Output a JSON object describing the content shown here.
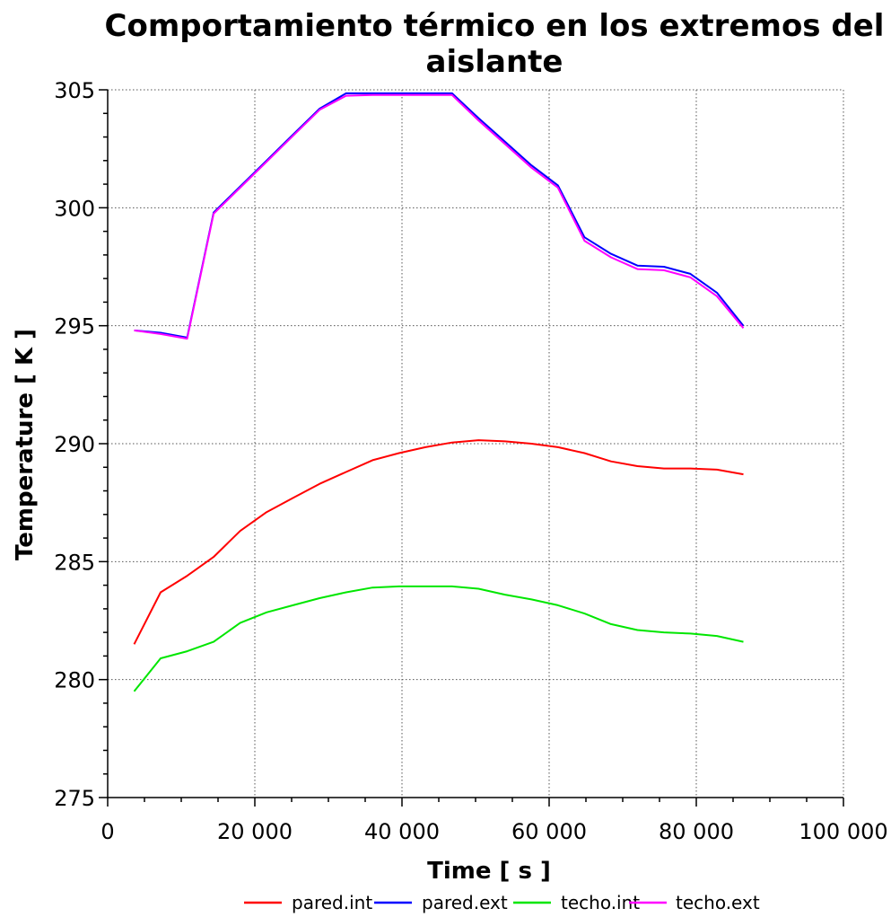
{
  "chart_data": {
    "type": "line",
    "title_line1": "Comportamiento térmico en los extremos del",
    "title_line2": "aislante",
    "xlabel": "Time [ s ]",
    "ylabel": "Temperature [ K ]",
    "xlim": [
      0,
      100000
    ],
    "ylim": [
      275,
      305
    ],
    "xticks": [
      0,
      20000,
      40000,
      60000,
      80000,
      100000
    ],
    "xtick_labels": [
      "0",
      "20 000",
      "40 000",
      "60 000",
      "80 000",
      "100 000"
    ],
    "yticks": [
      275,
      280,
      285,
      290,
      295,
      300,
      305
    ],
    "ytick_labels": [
      "275",
      "280",
      "285",
      "290",
      "295",
      "300",
      "305"
    ],
    "grid": true,
    "legend": "bottom",
    "x": [
      3600,
      7200,
      10800,
      14400,
      18000,
      21600,
      25200,
      28800,
      32400,
      36000,
      39600,
      43200,
      46800,
      50400,
      54000,
      57600,
      61200,
      64800,
      68400,
      72000,
      75600,
      79200,
      82800,
      86400
    ],
    "series": [
      {
        "name": "pared.int",
        "color": "#ff0000",
        "values": [
          281.5,
          283.7,
          284.4,
          285.2,
          286.3,
          287.1,
          287.7,
          288.3,
          288.8,
          289.3,
          289.6,
          289.85,
          290.05,
          290.15,
          290.1,
          290.0,
          289.85,
          289.6,
          289.25,
          289.05,
          288.95,
          288.95,
          288.9,
          288.7
        ]
      },
      {
        "name": "pared.ext",
        "color": "#0000ff",
        "values": [
          294.8,
          294.7,
          294.5,
          299.8,
          300.9,
          302.0,
          303.1,
          304.2,
          304.85,
          304.85,
          304.85,
          304.85,
          304.85,
          303.8,
          302.8,
          301.8,
          300.95,
          298.75,
          298.05,
          297.55,
          297.5,
          297.2,
          296.4,
          295.0
        ]
      },
      {
        "name": "techo.int",
        "color": "#00e600",
        "values": [
          279.5,
          280.9,
          281.2,
          281.6,
          282.4,
          282.85,
          283.15,
          283.45,
          283.7,
          283.9,
          283.95,
          283.95,
          283.95,
          283.85,
          283.6,
          283.4,
          283.15,
          282.8,
          282.35,
          282.1,
          282.0,
          281.95,
          281.85,
          281.6
        ]
      },
      {
        "name": "techo.ext",
        "color": "#ff00ff",
        "values": [
          294.8,
          294.65,
          294.45,
          299.75,
          300.85,
          301.95,
          303.05,
          304.15,
          304.75,
          304.78,
          304.78,
          304.78,
          304.78,
          303.7,
          302.7,
          301.7,
          300.85,
          298.6,
          297.9,
          297.4,
          297.35,
          297.05,
          296.25,
          294.9
        ]
      }
    ]
  }
}
